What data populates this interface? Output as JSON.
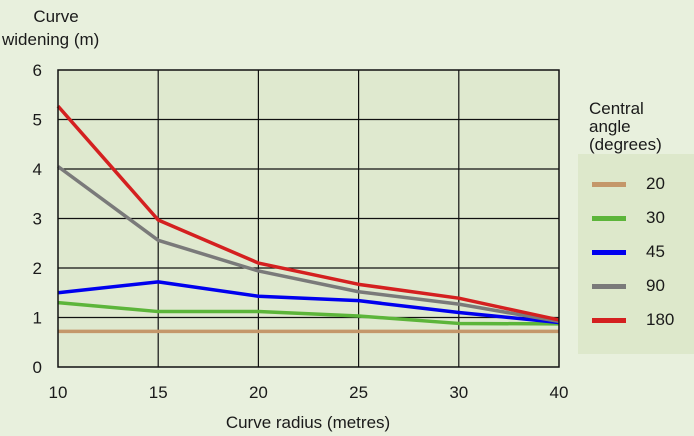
{
  "chart_data": {
    "type": "line",
    "xlabel": "Curve radius (metres)",
    "ylabel": "Curve\nwidening (m)",
    "categories": [
      "10",
      "15",
      "20",
      "25",
      "30",
      "40"
    ],
    "ylim": [
      0,
      6
    ],
    "yticks": [
      "0",
      "1",
      "2",
      "3",
      "4",
      "5",
      "6"
    ],
    "grid": true,
    "legend": {
      "title": "Central\nangle\n(degrees)",
      "placement": "right"
    },
    "series": [
      {
        "name": "20",
        "color": "#c4976a",
        "values": [
          0.72,
          0.72,
          0.72,
          0.72,
          0.72,
          0.72
        ]
      },
      {
        "name": "30",
        "color": "#5cb53a",
        "values": [
          1.3,
          1.12,
          1.12,
          1.03,
          0.88,
          0.87
        ]
      },
      {
        "name": "45",
        "color": "#0000ee",
        "values": [
          1.5,
          1.72,
          1.43,
          1.34,
          1.1,
          0.9
        ]
      },
      {
        "name": "90",
        "color": "#7a7a7a",
        "values": [
          4.05,
          2.56,
          1.94,
          1.52,
          1.27,
          0.92
        ]
      },
      {
        "name": "180",
        "color": "#d42020",
        "values": [
          5.27,
          2.97,
          2.1,
          1.67,
          1.39,
          0.95
        ]
      }
    ]
  },
  "legend_colors": {
    "20": "#c4976a",
    "30": "#5cb53a",
    "45": "#0000ee",
    "90": "#7a7a7a",
    "180": "#d42020"
  }
}
